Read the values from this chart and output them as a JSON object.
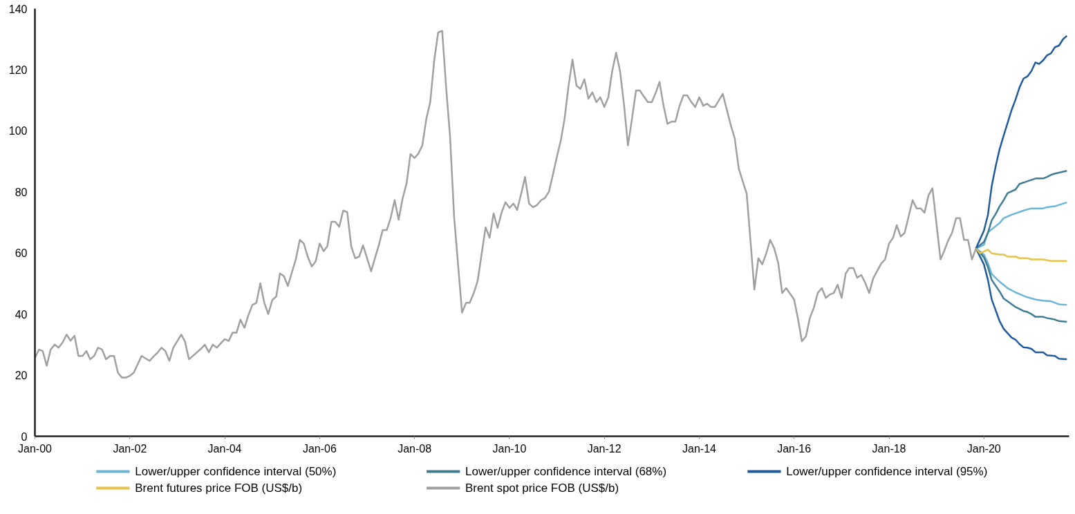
{
  "chart_data": {
    "type": "line",
    "xlim": [
      "2000-01",
      "2021-10-18"
    ],
    "ylim": [
      0,
      140
    ],
    "xticks": [
      {
        "value": "2000-01",
        "label": "Jan-00"
      },
      {
        "value": "2002-01",
        "label": "Jan-02"
      },
      {
        "value": "2004-01",
        "label": "Jan-04"
      },
      {
        "value": "2006-01",
        "label": "Jan-06"
      },
      {
        "value": "2008-01",
        "label": "Jan-08"
      },
      {
        "value": "2010-01",
        "label": "Jan-10"
      },
      {
        "value": "2012-01",
        "label": "Jan-12"
      },
      {
        "value": "2014-01",
        "label": "Jan-14"
      },
      {
        "value": "2016-01",
        "label": "Jan-16"
      },
      {
        "value": "2018-01",
        "label": "Jan-18"
      },
      {
        "value": "2020-01",
        "label": "Jan-20"
      }
    ],
    "yticks": [
      0,
      20,
      40,
      60,
      80,
      100,
      120,
      140
    ],
    "grid": false,
    "legend": "bottom",
    "line_style": "solid",
    "series": [
      {
        "name": "Lower/upper confidence interval (50%)",
        "color": "#6bb6d6",
        "x": [
          "2019-11",
          "2020-01",
          "2020-02",
          "2020-05",
          "2020-06",
          "2020-08",
          "2020-11",
          "2021-01",
          "2021-04",
          "2021-05",
          "2021-07",
          "2021-10"
        ],
        "values": [
          61.5,
          62.7,
          66.8,
          69.8,
          71.4,
          72.5,
          73.9,
          74.6,
          74.6,
          75.0,
          75.3,
          76.6
        ]
      },
      {
        "color": "#6bb6d6",
        "x": [
          "2019-11",
          "2020-01",
          "2020-02",
          "2020-03",
          "2020-05",
          "2020-07",
          "2020-09",
          "2020-11",
          "2020-12",
          "2021-02",
          "2021-04",
          "2021-06",
          "2021-08",
          "2021-10"
        ],
        "values": [
          61.5,
          59.5,
          56.7,
          53.1,
          50.6,
          48.5,
          47.1,
          46.0,
          45.5,
          44.8,
          44.4,
          44.2,
          43.2,
          43.0
        ]
      },
      {
        "name": "Lower/upper confidence interval (68%)",
        "color": "#3f7d93",
        "x": [
          "2019-11",
          "2020-01",
          "2020-02",
          "2020-03",
          "2020-04",
          "2020-05",
          "2020-06",
          "2020-07",
          "2020-09",
          "2020-10",
          "2020-12",
          "2021-02",
          "2021-04",
          "2021-05",
          "2021-06",
          "2021-07",
          "2021-10"
        ],
        "values": [
          61.5,
          63.6,
          66.6,
          70.7,
          72.8,
          75.3,
          77.3,
          79.6,
          80.8,
          82.6,
          83.5,
          84.4,
          84.4,
          84.9,
          85.6,
          86.0,
          86.9
        ]
      },
      {
        "color": "#3f7d93",
        "x": [
          "2019-11",
          "2020-01",
          "2020-02",
          "2020-03",
          "2020-05",
          "2020-06",
          "2020-09",
          "2020-11",
          "2020-12",
          "2021-01",
          "2021-02",
          "2021-04",
          "2021-05",
          "2021-07",
          "2021-08",
          "2021-10"
        ],
        "values": [
          61.5,
          58.6,
          55.4,
          51.2,
          47.4,
          45.1,
          42.3,
          41.0,
          40.7,
          40.0,
          39.1,
          39.1,
          38.7,
          38.2,
          37.7,
          37.5
        ]
      },
      {
        "name": "Lower/upper confidence interval (95%)",
        "color": "#1f5b9c",
        "x": [
          "2019-11",
          "2020-01",
          "2020-02",
          "2020-03",
          "2020-04",
          "2020-05",
          "2020-06",
          "2020-08",
          "2020-09",
          "2020-10",
          "2020-11",
          "2020-12",
          "2021-01",
          "2021-02",
          "2021-03",
          "2021-04",
          "2021-05",
          "2021-06",
          "2021-07",
          "2021-08",
          "2021-09",
          "2021-10"
        ],
        "values": [
          61.5,
          67.3,
          72.5,
          81.9,
          88.5,
          94.0,
          98.4,
          106.8,
          110.3,
          114.2,
          117.1,
          117.8,
          119.6,
          122.4,
          121.9,
          123.1,
          124.7,
          125.4,
          127.4,
          127.9,
          130.0,
          131.1
        ]
      },
      {
        "color": "#1f5b9c",
        "x": [
          "2019-11",
          "2020-01",
          "2020-02",
          "2020-03",
          "2020-04",
          "2020-05",
          "2020-06",
          "2020-08",
          "2020-09",
          "2020-10",
          "2020-11",
          "2020-12",
          "2021-01",
          "2021-02",
          "2021-04",
          "2021-05",
          "2021-07",
          "2021-08",
          "2021-10"
        ],
        "values": [
          61.5,
          56.3,
          51.2,
          44.8,
          41.2,
          37.7,
          35.2,
          32.3,
          31.6,
          30.2,
          29.1,
          29.0,
          28.6,
          27.5,
          27.5,
          26.5,
          26.3,
          25.4,
          25.2
        ]
      },
      {
        "name": "Brent futures price FOB (US$/b)",
        "color": "#e8c24a",
        "x": [
          "2019-11",
          "2019-12",
          "2020-02",
          "2020-03",
          "2020-05",
          "2020-06",
          "2020-07",
          "2020-09",
          "2020-10",
          "2020-12",
          "2021-01",
          "2021-04",
          "2021-06",
          "2021-10"
        ],
        "values": [
          61.5,
          59.9,
          61.1,
          59.9,
          59.5,
          59.5,
          58.8,
          58.8,
          58.3,
          58.3,
          57.9,
          57.9,
          57.4,
          57.4
        ]
      },
      {
        "name": "Brent spot price FOB (US$/b)",
        "color": "#a0a0a0",
        "x": [
          "2000-01",
          "2000-02",
          "2000-03",
          "2000-04",
          "2000-05",
          "2000-06",
          "2000-07",
          "2000-08",
          "2000-09",
          "2000-10",
          "2000-11",
          "2000-12",
          "2001-01",
          "2001-02",
          "2001-03",
          "2001-04",
          "2001-05",
          "2001-06",
          "2001-07",
          "2001-08",
          "2001-09",
          "2001-10",
          "2001-11",
          "2001-12",
          "2002-01",
          "2002-02",
          "2002-04",
          "2002-06",
          "2002-07",
          "2002-08",
          "2002-09",
          "2002-10",
          "2002-11",
          "2002-12",
          "2003-02",
          "2003-03",
          "2003-04",
          "2003-07",
          "2003-08",
          "2003-09",
          "2003-10",
          "2003-11",
          "2004-01",
          "2004-02",
          "2004-03",
          "2004-04",
          "2004-05",
          "2004-06",
          "2004-07",
          "2004-08",
          "2004-09",
          "2004-10",
          "2004-11",
          "2004-12",
          "2005-01",
          "2005-02",
          "2005-03",
          "2005-04",
          "2005-05",
          "2005-07",
          "2005-08",
          "2005-09",
          "2005-10",
          "2005-11",
          "2005-12",
          "2006-01",
          "2006-02",
          "2006-03",
          "2006-04",
          "2006-05",
          "2006-06",
          "2006-07",
          "2006-08",
          "2006-09",
          "2006-10",
          "2006-11",
          "2006-12",
          "2007-02",
          "2007-03",
          "2007-04",
          "2007-05",
          "2007-06",
          "2007-07",
          "2007-08",
          "2007-09",
          "2007-10",
          "2007-11",
          "2007-12",
          "2008-01",
          "2008-02",
          "2008-03",
          "2008-04",
          "2008-05",
          "2008-06",
          "2008-07",
          "2008-08",
          "2008-09",
          "2008-10",
          "2008-11",
          "2009-01",
          "2009-02",
          "2009-03",
          "2009-04",
          "2009-05",
          "2009-07",
          "2009-08",
          "2009-09",
          "2009-10",
          "2009-11",
          "2009-12",
          "2010-01",
          "2010-02",
          "2010-03",
          "2010-04",
          "2010-05",
          "2010-06",
          "2010-07",
          "2010-08",
          "2010-09",
          "2010-10",
          "2010-11",
          "2010-12",
          "2011-01",
          "2011-02",
          "2011-03",
          "2011-04",
          "2011-05",
          "2011-06",
          "2011-07",
          "2011-08",
          "2011-09",
          "2011-10",
          "2011-11",
          "2011-12",
          "2012-01",
          "2012-02",
          "2012-03",
          "2012-04",
          "2012-05",
          "2012-06",
          "2012-07",
          "2012-08",
          "2012-09",
          "2012-10",
          "2012-11",
          "2012-12",
          "2013-01",
          "2013-02",
          "2013-03",
          "2013-04",
          "2013-05",
          "2013-06",
          "2013-07",
          "2013-08",
          "2013-09",
          "2013-10",
          "2013-11",
          "2013-12",
          "2014-01",
          "2014-02",
          "2014-03",
          "2014-04",
          "2014-05",
          "2014-07",
          "2014-09",
          "2014-10",
          "2014-11",
          "2015-01",
          "2015-02",
          "2015-03",
          "2015-04",
          "2015-05",
          "2015-06",
          "2015-07",
          "2015-08",
          "2015-09",
          "2015-10",
          "2015-11",
          "2016-01",
          "2016-02",
          "2016-03",
          "2016-04",
          "2016-05",
          "2016-06",
          "2016-07",
          "2016-08",
          "2016-09",
          "2016-10",
          "2016-11",
          "2016-12",
          "2017-01",
          "2017-02",
          "2017-03",
          "2017-04",
          "2017-05",
          "2017-06",
          "2017-07",
          "2017-08",
          "2017-09",
          "2017-11",
          "2017-12",
          "2018-01",
          "2018-02",
          "2018-03",
          "2018-04",
          "2018-05",
          "2018-07",
          "2018-08",
          "2018-09",
          "2018-10",
          "2018-11",
          "2018-12",
          "2019-02",
          "2019-03",
          "2019-04",
          "2019-05",
          "2019-06",
          "2019-07",
          "2019-08",
          "2019-09",
          "2019-10",
          "2019-11"
        ],
        "values": [
          25.6,
          28.4,
          27.9,
          23.1,
          28.4,
          30.0,
          29.0,
          30.7,
          33.3,
          31.3,
          32.9,
          26.3,
          26.3,
          27.9,
          25.2,
          26.3,
          29.0,
          28.4,
          25.2,
          26.3,
          26.3,
          20.8,
          19.2,
          19.2,
          19.8,
          20.9,
          26.3,
          24.7,
          26.1,
          27.3,
          29.0,
          27.9,
          24.7,
          29.0,
          33.3,
          31.0,
          25.2,
          28.6,
          30.0,
          27.5,
          30.0,
          29.0,
          31.8,
          31.2,
          33.9,
          33.9,
          38.2,
          35.5,
          39.6,
          43.0,
          43.7,
          50.1,
          43.7,
          40.0,
          44.6,
          45.8,
          53.3,
          52.4,
          49.2,
          57.9,
          64.3,
          63.1,
          58.8,
          55.6,
          57.2,
          63.1,
          60.6,
          62.2,
          70.2,
          70.2,
          68.6,
          73.9,
          73.4,
          62.2,
          58.3,
          58.8,
          62.5,
          54.0,
          58.1,
          62.5,
          67.5,
          67.5,
          71.4,
          77.3,
          70.9,
          77.8,
          82.8,
          92.4,
          91.1,
          92.6,
          95.2,
          103.9,
          109.4,
          123.1,
          132.2,
          132.7,
          113.9,
          97.9,
          71.8,
          40.5,
          43.7,
          43.7,
          46.9,
          50.8,
          68.4,
          65.0,
          73.0,
          68.2,
          73.2,
          76.6,
          74.8,
          76.2,
          74.1,
          79.4,
          84.9,
          76.2,
          75.0,
          75.7,
          77.3,
          78.0,
          80.1,
          85.6,
          91.5,
          97.0,
          103.9,
          114.8,
          123.3,
          114.8,
          113.7,
          116.9,
          110.5,
          112.6,
          109.4,
          111.0,
          107.8,
          111.0,
          119.4,
          125.6,
          119.6,
          108.4,
          95.2,
          103.9,
          113.2,
          113.2,
          111.2,
          109.4,
          109.4,
          112.6,
          116.0,
          108.2,
          102.3,
          103.0,
          103.0,
          108.0,
          111.6,
          111.6,
          109.4,
          107.8,
          111.0,
          108.2,
          108.9,
          107.8,
          107.8,
          112.1,
          101.8,
          97.5,
          87.6,
          79.4,
          63.1,
          48.0,
          58.3,
          56.3,
          59.9,
          64.3,
          61.5,
          56.7,
          46.9,
          48.5,
          44.8,
          38.2,
          31.1,
          32.7,
          38.7,
          42.1,
          46.9,
          48.5,
          45.3,
          46.4,
          46.9,
          49.6,
          45.3,
          53.3,
          55.1,
          55.1,
          51.9,
          52.8,
          50.3,
          46.9,
          51.7,
          56.5,
          57.9,
          63.1,
          65.0,
          69.1,
          65.4,
          66.6,
          77.3,
          74.6,
          74.6,
          73.2,
          78.9,
          81.2,
          57.9,
          60.6,
          64.1,
          66.6,
          71.4,
          71.4,
          64.3,
          64.3,
          57.9,
          61.5
        ]
      }
    ]
  }
}
